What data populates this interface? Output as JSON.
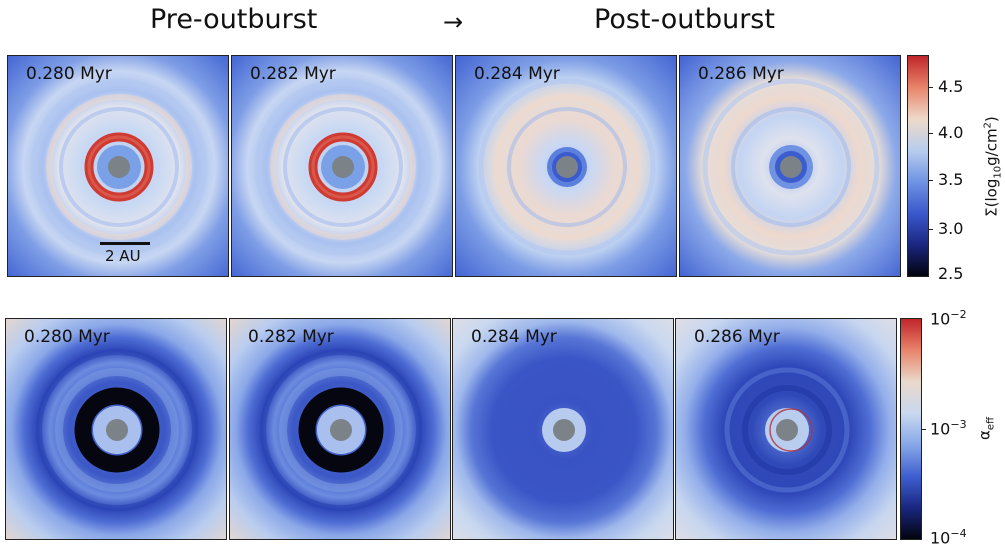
{
  "header": {
    "pre_label": "Pre-outburst",
    "arrow": "→",
    "post_label": "Post-outburst"
  },
  "top_row": {
    "panels": [
      {
        "time": "0.280 Myr",
        "state": "outburst-ring"
      },
      {
        "time": "0.282 Myr",
        "state": "outburst-ring"
      },
      {
        "time": "0.284 Myr",
        "state": "quiescent"
      },
      {
        "time": "0.286 Myr",
        "state": "quiescent-ringed"
      }
    ],
    "scalebar_label": "2 AU",
    "colorbar": {
      "label_main": "Σ(log",
      "label_sub": "10",
      "label_rest": "g/cm",
      "label_sup": "2",
      "label_close": ")",
      "ticks": [
        "4.5",
        "4.0",
        "3.5",
        "3.0",
        "2.5"
      ],
      "colors": [
        "#c0262b",
        "#e8846a",
        "#eed9c9",
        "#b8cdee",
        "#6f93e3",
        "#3b58cc",
        "#1a2780",
        "#02030f"
      ]
    }
  },
  "bottom_row": {
    "panels": [
      {
        "time": "0.280 Myr",
        "state": "dark-ring"
      },
      {
        "time": "0.282 Myr",
        "state": "dark-ring"
      },
      {
        "time": "0.284 Myr",
        "state": "uniform-dark"
      },
      {
        "time": "0.286 Myr",
        "state": "turbulent"
      }
    ],
    "colorbar": {
      "label_main": "α",
      "label_sub": "eff",
      "ticks": [
        {
          "base": "10",
          "exp": "−2"
        },
        {
          "base": "10",
          "exp": "−3"
        },
        {
          "base": "10",
          "exp": "−4"
        }
      ],
      "colors": [
        "#c0262b",
        "#e8846a",
        "#ead9cc",
        "#c9d8ef",
        "#88a7e8",
        "#3f5fd0",
        "#1a2780",
        "#02030f"
      ]
    }
  }
}
